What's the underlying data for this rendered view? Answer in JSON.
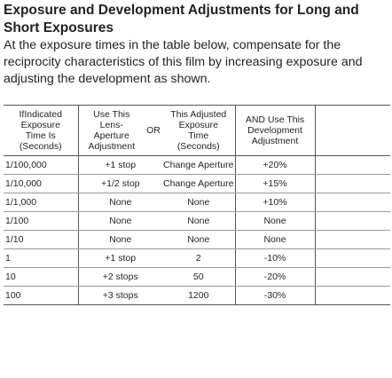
{
  "header": {
    "title": "Exposure and Development Adjustments for Long and Short Exposures",
    "text": "At the exposure times in the table below, compensate for the reciprocity characteristics of this film by increasing exposure and adjusting the development as shown."
  },
  "table": {
    "columns": [
      [
        "IfIndicated",
        "Exposure",
        "Time Is",
        "(Seconds)"
      ],
      [
        "Use This",
        "Lens-",
        "Aperture",
        "Adjustment"
      ],
      [
        "OR"
      ],
      [
        "This Adjusted",
        "Exposure",
        "Time",
        "(Seconds)"
      ],
      [
        "AND Use This",
        "Development",
        "Adjustment"
      ]
    ],
    "rows": [
      [
        "1/100,000",
        "+1 stop",
        "Change Aperture",
        "+20%"
      ],
      [
        "1/10,000",
        "+1/2 stop",
        "Change Aperture",
        "+15%"
      ],
      [
        "1/1,000",
        "None",
        "None",
        "+10%"
      ],
      [
        "1/100",
        "None",
        "None",
        "None"
      ],
      [
        "1/10",
        "None",
        "None",
        "None"
      ],
      [
        "1",
        "+1 stop",
        "2",
        "-10%"
      ],
      [
        "10",
        "+2 stops",
        "50",
        "-20%"
      ],
      [
        "100",
        "+3 stops",
        "1200",
        "-30%"
      ]
    ]
  }
}
